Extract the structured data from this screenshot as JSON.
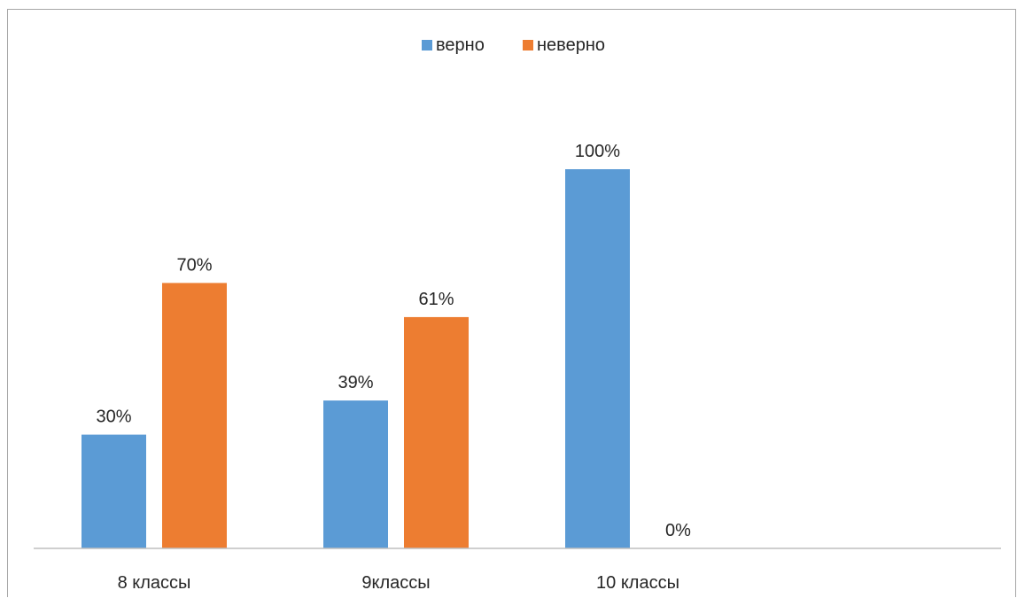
{
  "chart_data": {
    "type": "bar",
    "categories": [
      "8 классы",
      "9классы",
      "10 классы"
    ],
    "series": [
      {
        "name": "верно",
        "values": [
          30,
          39,
          100
        ],
        "labels": [
          "30%",
          "39%",
          "100%"
        ]
      },
      {
        "name": "неверно",
        "values": [
          70,
          61,
          0
        ],
        "labels": [
          "70%",
          "61%",
          "0%"
        ]
      }
    ],
    "ylim": [
      0,
      100
    ],
    "value_unit": "%",
    "grid": false,
    "legend_position": "top",
    "colors": {
      "верно": "#5b9bd5",
      "неверно": "#ed7d31"
    }
  }
}
